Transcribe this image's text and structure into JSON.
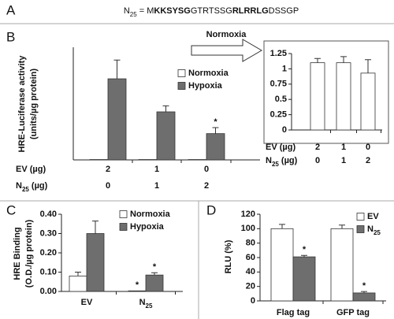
{
  "panel_a": {
    "label": "A",
    "sequence": {
      "prefix": "N",
      "sub": "25",
      "parts": [
        " = M",
        "KKSYSG",
        "GTRTSSG",
        "RLRRLG",
        "DSSGP"
      ]
    }
  },
  "chart_data": [
    {
      "type": "bar",
      "panel": "B",
      "ylabel": [
        "HRE-Luciferase activity",
        "(units/µg protein)"
      ],
      "ylim": [
        0,
        150
      ],
      "series": [
        {
          "name": "Normoxia",
          "color": "#ffffff",
          "values": [
            0.5,
            0.5,
            0.5
          ]
        },
        {
          "name": "Hypoxia",
          "color": "#6e6e6e",
          "values": [
            108,
            64,
            35
          ],
          "errors": [
            25,
            8,
            8
          ]
        }
      ],
      "annotations": [
        {
          "text": "*",
          "series": 1,
          "index": 2
        }
      ],
      "table": [
        {
          "label": "EV (µg)",
          "values": [
            2,
            1,
            0
          ]
        },
        {
          "label": "N",
          "sub": "25",
          "suffix": " (µg)",
          "values": [
            0,
            1,
            2
          ]
        }
      ]
    },
    {
      "type": "bar",
      "label": "Normoxia",
      "ylim": [
        0,
        1.25
      ],
      "yticks": [
        0,
        0.25,
        0.5,
        0.75,
        1,
        1.25
      ],
      "series": [
        {
          "color": "#ffffff",
          "values": [
            1.1,
            1.1,
            0.93
          ],
          "errors": [
            0.07,
            0.1,
            0.22
          ]
        }
      ],
      "table": [
        {
          "label": "EV (µg)",
          "values": [
            2,
            1,
            0
          ]
        },
        {
          "label": "N",
          "sub": "25",
          "suffix": " (µg)",
          "values": [
            0,
            1,
            2
          ]
        }
      ]
    },
    {
      "type": "bar",
      "panel": "C",
      "ylabel": [
        "HRE Binding",
        "(O.D./µg protein)"
      ],
      "ylim": [
        0,
        0.4
      ],
      "yticks": [
        {
          "value": 0,
          "label": "0.00"
        },
        {
          "value": 0.1,
          "label": "0.10"
        },
        {
          "value": 0.2,
          "label": "0.20"
        },
        {
          "value": 0.3,
          "label": "0.30"
        },
        {
          "value": 0.4,
          "label": "0.40"
        }
      ],
      "categories": [
        {
          "text": "EV"
        },
        {
          "text": "N",
          "sub": "25"
        }
      ],
      "series": [
        {
          "name": "Normoxia",
          "color": "#ffffff",
          "values": [
            0.08,
            0.003
          ],
          "errors": [
            0.02,
            null
          ]
        },
        {
          "name": "Hypoxia",
          "color": "#6e6e6e",
          "values": [
            0.3,
            0.085
          ],
          "errors": [
            0.065,
            0.012
          ]
        }
      ],
      "annotations": [
        {
          "text": "*",
          "series": 0,
          "index": 1
        },
        {
          "text": "*",
          "series": 1,
          "index": 1
        }
      ]
    },
    {
      "type": "bar",
      "panel": "D",
      "ylabel": [
        "RLU (%)"
      ],
      "ylim": [
        0,
        120
      ],
      "yticks": [
        0,
        20,
        40,
        60,
        80,
        100,
        120
      ],
      "categories": [
        {
          "text": "Flag tag"
        },
        {
          "text": "GFP tag"
        }
      ],
      "series": [
        {
          "name": "EV",
          "color": "#ffffff",
          "values": [
            100,
            100
          ],
          "errors": [
            6,
            5
          ]
        },
        {
          "name": "N",
          "name_sub": "25",
          "color": "#6e6e6e",
          "values": [
            61,
            11
          ],
          "errors": [
            2,
            2
          ]
        }
      ],
      "annotations": [
        {
          "text": "*",
          "series": 1,
          "index": 0
        },
        {
          "text": "*",
          "series": 1,
          "index": 1
        }
      ]
    }
  ]
}
